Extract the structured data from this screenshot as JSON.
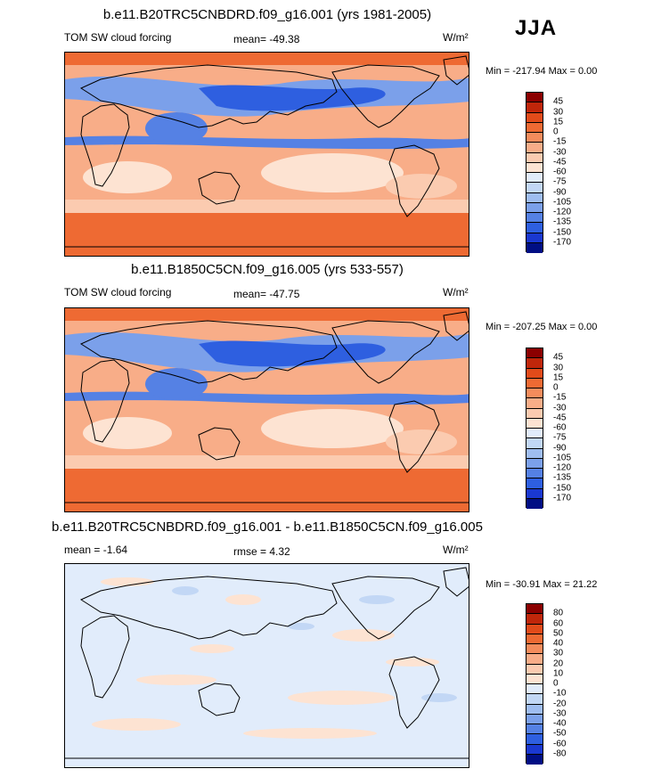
{
  "season": "JJA",
  "panels": [
    {
      "title": "b.e11.B20TRC5CNBDRD.f09_g16.001 (yrs 1981-2005)",
      "left_label": "TOM SW cloud forcing",
      "mid_label": "mean= -49.38",
      "units": "W/m²",
      "minmax": "Min = -217.94 Max =   0.00",
      "colorbar": {
        "labels": [
          "45",
          "30",
          "15",
          "0",
          "-15",
          "-30",
          "-45",
          "-60",
          "-75",
          "-90",
          "-105",
          "-120",
          "-135",
          "-150",
          "-170"
        ],
        "colors": [
          "#8b0000",
          "#c0260a",
          "#e14b1a",
          "#ee6a33",
          "#f48c5c",
          "#f8ad88",
          "#fbcbb0",
          "#fde3d2",
          "#e1ecfb",
          "#c2d7f5",
          "#9fbdf0",
          "#7ba0ea",
          "#5581e4",
          "#2e5fe0",
          "#1a38d0",
          "#000e84"
        ]
      }
    },
    {
      "title": "b.e11.B1850C5CN.f09_g16.005 (yrs 533-557)",
      "left_label": "TOM SW cloud forcing",
      "mid_label": "mean= -47.75",
      "units": "W/m²",
      "minmax": "Min = -207.25 Max =   0.00",
      "colorbar": {
        "labels": [
          "45",
          "30",
          "15",
          "0",
          "-15",
          "-30",
          "-45",
          "-60",
          "-75",
          "-90",
          "-105",
          "-120",
          "-135",
          "-150",
          "-170"
        ],
        "colors": [
          "#8b0000",
          "#c0260a",
          "#e14b1a",
          "#ee6a33",
          "#f48c5c",
          "#f8ad88",
          "#fbcbb0",
          "#fde3d2",
          "#e1ecfb",
          "#c2d7f5",
          "#9fbdf0",
          "#7ba0ea",
          "#5581e4",
          "#2e5fe0",
          "#1a38d0",
          "#000e84"
        ]
      }
    },
    {
      "title": "b.e11.B20TRC5CNBDRD.f09_g16.001 - b.e11.B1850C5CN.f09_g16.005",
      "left_label": "mean =  -1.64",
      "mid_label": "rmse =   4.32",
      "units": "W/m²",
      "minmax": "Min = -30.91 Max =  21.22",
      "colorbar": {
        "labels": [
          "80",
          "60",
          "50",
          "40",
          "30",
          "20",
          "10",
          "0",
          "-10",
          "-20",
          "-30",
          "-40",
          "-50",
          "-60",
          "-80"
        ],
        "colors": [
          "#8b0000",
          "#c0260a",
          "#e14b1a",
          "#ee6a33",
          "#f48c5c",
          "#f8ad88",
          "#fbcbb0",
          "#fde3d2",
          "#e1ecfb",
          "#c2d7f5",
          "#9fbdf0",
          "#7ba0ea",
          "#5581e4",
          "#2e5fe0",
          "#1a38d0",
          "#000e84"
        ]
      }
    }
  ]
}
